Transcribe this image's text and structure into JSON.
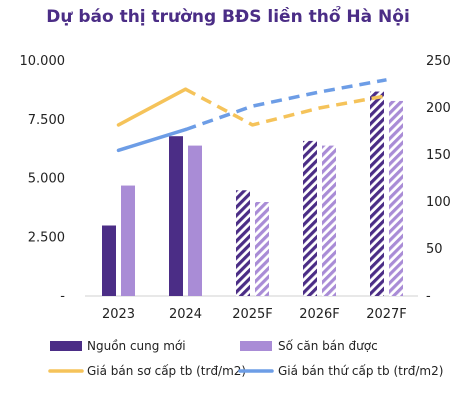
{
  "chart_data": {
    "type": "bar",
    "title": "Dự báo thị trường BĐS liền thổ Hà Nội",
    "categories": [
      "2023",
      "2024",
      "2025F",
      "2026F",
      "2027F"
    ],
    "forecast_from_index": 2,
    "y_left": {
      "min": 0,
      "max": 10000,
      "ticks": [
        "-",
        "2.500",
        "5.000",
        "7.500",
        "10.000"
      ]
    },
    "y_right": {
      "min": 0,
      "max": 250,
      "ticks": [
        "-",
        "50",
        "100",
        "150",
        "200",
        "250"
      ]
    },
    "bar_series": [
      {
        "name": "Nguồn cung mới",
        "color": "#4b2d86",
        "values": [
          3000,
          6800,
          4500,
          6600,
          8700
        ]
      },
      {
        "name": "Số căn bán được",
        "color": "#a98cd6",
        "values": [
          4700,
          6400,
          4000,
          6400,
          8300
        ]
      }
    ],
    "line_series": [
      {
        "name": "Giá bán sơ cấp tb (trđ/m2)",
        "color": "#f5c35a",
        "axis": "right",
        "values": [
          182,
          220,
          182,
          200,
          213
        ]
      },
      {
        "name": "Giá bán thứ cấp tb (trđ/m2)",
        "color": "#6d9de6",
        "axis": "right",
        "values": [
          155,
          177,
          202,
          217,
          230
        ]
      }
    ],
    "legend_position": "bottom",
    "grid": false
  }
}
